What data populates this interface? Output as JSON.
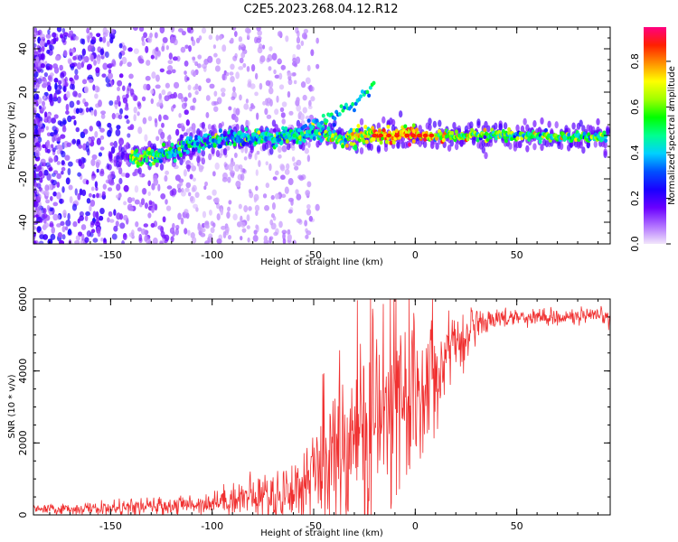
{
  "title": "C2E5.2023.268.04.12.R12",
  "chart_data": [
    {
      "type": "heatmap",
      "name": "spectrogram",
      "xlabel": "Height of straight line (km)",
      "ylabel": "Frequency (Hz)",
      "xlim": [
        -188,
        96
      ],
      "ylim": [
        -50,
        50
      ],
      "xticks": [
        -150,
        -100,
        -50,
        0,
        50
      ],
      "yticks": [
        -40,
        -20,
        0,
        20,
        40
      ],
      "xtick_labels": [
        "-150",
        "-100",
        "-50",
        "0",
        "50"
      ],
      "ytick_labels": [
        "-40",
        "-20",
        "0",
        "20",
        "40"
      ],
      "colorbar": {
        "label": "Normalized spectral amplitude",
        "range": [
          0.0,
          0.95
        ],
        "ticks": [
          0.0,
          0.2,
          0.4,
          0.6,
          0.8
        ],
        "tick_labels": [
          "0.0",
          "0.2",
          "0.4",
          "0.6",
          "0.8"
        ],
        "colormap": [
          "#f2e6fb",
          "#b070ff",
          "#6a00ff",
          "#1a00ff",
          "#0050ff",
          "#00d0ff",
          "#00ff90",
          "#00ff00",
          "#a0ff00",
          "#ffff00",
          "#ff9000",
          "#ff2000",
          "#ff0080"
        ]
      },
      "signal_track": [
        {
          "x": -135,
          "y": -10,
          "amp": 0.55
        },
        {
          "x": -120,
          "y": -8,
          "amp": 0.45
        },
        {
          "x": -110,
          "y": -4,
          "amp": 0.4
        },
        {
          "x": -100,
          "y": -2,
          "amp": 0.4
        },
        {
          "x": -80,
          "y": -1,
          "amp": 0.4
        },
        {
          "x": -60,
          "y": 0,
          "amp": 0.45
        },
        {
          "x": -45,
          "y": 2,
          "amp": 0.5
        },
        {
          "x": -35,
          "y": -2,
          "amp": 0.55
        },
        {
          "x": -20,
          "y": 0,
          "amp": 0.7
        },
        {
          "x": 0,
          "y": 0,
          "amp": 0.8
        },
        {
          "x": 20,
          "y": 0,
          "amp": 0.55
        },
        {
          "x": 50,
          "y": 0,
          "amp": 0.5
        },
        {
          "x": 90,
          "y": -1,
          "amp": 0.5
        }
      ]
    },
    {
      "type": "line",
      "name": "snr",
      "xlabel": "Height of straight line (km)",
      "ylabel": "SNR (10 * v/v)",
      "xlim": [
        -188,
        96
      ],
      "ylim": [
        0,
        6000
      ],
      "xticks": [
        -150,
        -100,
        -50,
        0,
        50
      ],
      "yticks": [
        0,
        2000,
        4000,
        6000
      ],
      "xtick_labels": [
        "-150",
        "-100",
        "-50",
        "0",
        "50"
      ],
      "ytick_labels": [
        "0",
        "2000",
        "4000",
        "6000"
      ],
      "color": "#f03030",
      "envelope": {
        "x": [
          -188,
          -150,
          -120,
          -100,
          -85,
          -70,
          -55,
          -45,
          -35,
          -25,
          -15,
          -5,
          5,
          15,
          25,
          35,
          45,
          60,
          96
        ],
        "y": [
          150,
          180,
          250,
          350,
          500,
          500,
          800,
          1500,
          2000,
          2400,
          2800,
          3200,
          3800,
          4400,
          5000,
          5400,
          5500,
          5500,
          5500
        ]
      },
      "noise": {
        "x": [
          -188,
          -100,
          -55,
          -40,
          -20,
          -5,
          10,
          25,
          40,
          96
        ],
        "y": [
          60,
          150,
          500,
          1000,
          1600,
          1400,
          800,
          300,
          120,
          120
        ]
      }
    }
  ]
}
